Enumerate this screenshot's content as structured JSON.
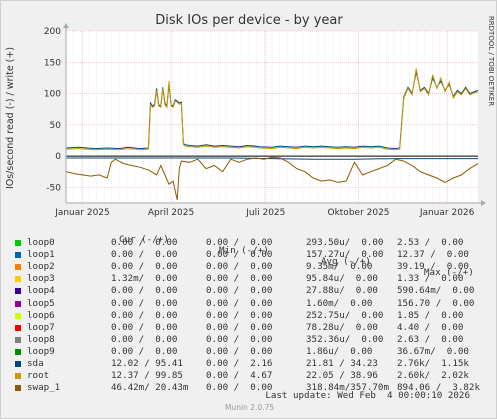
{
  "chart_data": {
    "type": "line",
    "title": "Disk IOs per device - by year",
    "ylabel": "IOs/second read (-) / write (+)",
    "ylim": [
      -75,
      200
    ],
    "yticks": [
      200,
      150,
      100,
      50,
      0,
      -50
    ],
    "xticks": [
      "Januar 2025",
      "April 2025",
      "Juli 2025",
      "Oktober 2025",
      "Januar 2026"
    ],
    "watermark": "RRDTOOL / TOBI OETIKER",
    "series": [
      {
        "name": "loop0",
        "color": "#00cc00"
      },
      {
        "name": "loop1",
        "color": "#0066b3"
      },
      {
        "name": "loop2",
        "color": "#ff8000"
      },
      {
        "name": "loop3",
        "color": "#ffcc00"
      },
      {
        "name": "loop4",
        "color": "#330099"
      },
      {
        "name": "loop5",
        "color": "#990099"
      },
      {
        "name": "loop6",
        "color": "#ccff00"
      },
      {
        "name": "loop7",
        "color": "#ff0000"
      },
      {
        "name": "loop8",
        "color": "#808080"
      },
      {
        "name": "loop9",
        "color": "#008f00"
      },
      {
        "name": "sda",
        "color": "#00487d",
        "write": [
          [
            0,
            13
          ],
          [
            0.03,
            14
          ],
          [
            0.07,
            12
          ],
          [
            0.1,
            13
          ],
          [
            0.13,
            12
          ],
          [
            0.15,
            14
          ],
          [
            0.18,
            12
          ],
          [
            0.2,
            13
          ],
          [
            0.205,
            85
          ],
          [
            0.21,
            80
          ],
          [
            0.215,
            83
          ],
          [
            0.22,
            108
          ],
          [
            0.225,
            82
          ],
          [
            0.23,
            80
          ],
          [
            0.235,
            110
          ],
          [
            0.24,
            85
          ],
          [
            0.245,
            80
          ],
          [
            0.25,
            115
          ],
          [
            0.255,
            82
          ],
          [
            0.26,
            80
          ],
          [
            0.265,
            90
          ],
          [
            0.27,
            88
          ],
          [
            0.275,
            85
          ],
          [
            0.28,
            86
          ],
          [
            0.285,
            20
          ],
          [
            0.29,
            18
          ],
          [
            0.3,
            17
          ],
          [
            0.32,
            16
          ],
          [
            0.34,
            18
          ],
          [
            0.36,
            16
          ],
          [
            0.38,
            17
          ],
          [
            0.4,
            16
          ],
          [
            0.42,
            15
          ],
          [
            0.44,
            17
          ],
          [
            0.46,
            16
          ],
          [
            0.47,
            15
          ],
          [
            0.5,
            14
          ],
          [
            0.52,
            16
          ],
          [
            0.54,
            15
          ],
          [
            0.56,
            14
          ],
          [
            0.58,
            16
          ],
          [
            0.6,
            15
          ],
          [
            0.62,
            16
          ],
          [
            0.64,
            15
          ],
          [
            0.66,
            14
          ],
          [
            0.68,
            15
          ],
          [
            0.7,
            14
          ],
          [
            0.72,
            16
          ],
          [
            0.74,
            15
          ],
          [
            0.76,
            16
          ],
          [
            0.78,
            13
          ],
          [
            0.8,
            12
          ],
          [
            0.81,
            13
          ],
          [
            0.82,
            95
          ],
          [
            0.83,
            110
          ],
          [
            0.84,
            100
          ],
          [
            0.85,
            135
          ],
          [
            0.86,
            105
          ],
          [
            0.87,
            110
          ],
          [
            0.88,
            100
          ],
          [
            0.89,
            125
          ],
          [
            0.9,
            110
          ],
          [
            0.91,
            120
          ],
          [
            0.92,
            105
          ],
          [
            0.93,
            115
          ],
          [
            0.94,
            95
          ],
          [
            0.95,
            105
          ],
          [
            0.96,
            100
          ],
          [
            0.97,
            110
          ],
          [
            0.98,
            100
          ],
          [
            1,
            105
          ]
        ],
        "read": [
          [
            0,
            -3
          ],
          [
            0.1,
            -3
          ],
          [
            0.2,
            -3
          ],
          [
            0.3,
            -3
          ],
          [
            0.4,
            -3
          ],
          [
            0.5,
            -4
          ],
          [
            0.6,
            -5
          ],
          [
            0.7,
            -5
          ],
          [
            0.8,
            -4
          ],
          [
            0.9,
            -4
          ],
          [
            1,
            -4
          ]
        ]
      },
      {
        "name": "root",
        "color": "#cc9900",
        "write": [
          [
            0,
            11
          ],
          [
            0.03,
            12
          ],
          [
            0.07,
            10
          ],
          [
            0.1,
            11
          ],
          [
            0.13,
            10
          ],
          [
            0.15,
            12
          ],
          [
            0.18,
            10
          ],
          [
            0.2,
            11
          ],
          [
            0.205,
            82
          ],
          [
            0.21,
            78
          ],
          [
            0.215,
            80
          ],
          [
            0.22,
            105
          ],
          [
            0.225,
            80
          ],
          [
            0.23,
            78
          ],
          [
            0.235,
            108
          ],
          [
            0.24,
            82
          ],
          [
            0.245,
            78
          ],
          [
            0.25,
            120
          ],
          [
            0.255,
            80
          ],
          [
            0.26,
            78
          ],
          [
            0.265,
            88
          ],
          [
            0.27,
            86
          ],
          [
            0.275,
            83
          ],
          [
            0.28,
            84
          ],
          [
            0.285,
            18
          ],
          [
            0.29,
            16
          ],
          [
            0.3,
            15
          ],
          [
            0.32,
            14
          ],
          [
            0.34,
            16
          ],
          [
            0.36,
            14
          ],
          [
            0.38,
            15
          ],
          [
            0.4,
            14
          ],
          [
            0.42,
            13
          ],
          [
            0.44,
            15
          ],
          [
            0.46,
            14
          ],
          [
            0.47,
            13
          ],
          [
            0.5,
            12
          ],
          [
            0.52,
            14
          ],
          [
            0.54,
            13
          ],
          [
            0.56,
            12
          ],
          [
            0.58,
            14
          ],
          [
            0.6,
            13
          ],
          [
            0.62,
            14
          ],
          [
            0.64,
            13
          ],
          [
            0.66,
            12
          ],
          [
            0.68,
            13
          ],
          [
            0.7,
            12
          ],
          [
            0.72,
            14
          ],
          [
            0.74,
            13
          ],
          [
            0.76,
            14
          ],
          [
            0.78,
            11
          ],
          [
            0.8,
            10
          ],
          [
            0.81,
            11
          ],
          [
            0.82,
            93
          ],
          [
            0.83,
            108
          ],
          [
            0.84,
            98
          ],
          [
            0.85,
            140
          ],
          [
            0.86,
            103
          ],
          [
            0.87,
            108
          ],
          [
            0.88,
            98
          ],
          [
            0.89,
            130
          ],
          [
            0.9,
            108
          ],
          [
            0.91,
            125
          ],
          [
            0.92,
            103
          ],
          [
            0.93,
            118
          ],
          [
            0.94,
            93
          ],
          [
            0.95,
            103
          ],
          [
            0.96,
            98
          ],
          [
            0.97,
            108
          ],
          [
            0.98,
            98
          ],
          [
            1,
            103
          ]
        ]
      },
      {
        "name": "swap_1",
        "color": "#8f5a00",
        "read": [
          [
            0,
            -25
          ],
          [
            0.02,
            -28
          ],
          [
            0.04,
            -30
          ],
          [
            0.06,
            -32
          ],
          [
            0.08,
            -30
          ],
          [
            0.1,
            -35
          ],
          [
            0.11,
            -10
          ],
          [
            0.12,
            -5
          ],
          [
            0.14,
            -12
          ],
          [
            0.16,
            -15
          ],
          [
            0.18,
            -18
          ],
          [
            0.2,
            -22
          ],
          [
            0.22,
            -30
          ],
          [
            0.23,
            -15
          ],
          [
            0.25,
            -45
          ],
          [
            0.26,
            -40
          ],
          [
            0.27,
            -70
          ],
          [
            0.275,
            -20
          ],
          [
            0.28,
            -8
          ],
          [
            0.3,
            -10
          ],
          [
            0.32,
            -5
          ],
          [
            0.34,
            -20
          ],
          [
            0.36,
            -15
          ],
          [
            0.38,
            -25
          ],
          [
            0.4,
            -5
          ],
          [
            0.42,
            -10
          ],
          [
            0.44,
            -5
          ],
          [
            0.46,
            -3
          ],
          [
            0.48,
            -5
          ],
          [
            0.5,
            -2
          ],
          [
            0.52,
            -3
          ],
          [
            0.54,
            -10
          ],
          [
            0.56,
            -20
          ],
          [
            0.58,
            -25
          ],
          [
            0.6,
            -35
          ],
          [
            0.62,
            -40
          ],
          [
            0.64,
            -38
          ],
          [
            0.66,
            -42
          ],
          [
            0.68,
            -40
          ],
          [
            0.7,
            -10
          ],
          [
            0.72,
            -30
          ],
          [
            0.74,
            -25
          ],
          [
            0.76,
            -20
          ],
          [
            0.78,
            -15
          ],
          [
            0.8,
            -5
          ],
          [
            0.82,
            -8
          ],
          [
            0.84,
            -15
          ],
          [
            0.86,
            -25
          ],
          [
            0.88,
            -30
          ],
          [
            0.9,
            -35
          ],
          [
            0.92,
            -42
          ],
          [
            0.94,
            -35
          ],
          [
            0.96,
            -30
          ],
          [
            0.97,
            -25
          ],
          [
            0.98,
            -20
          ],
          [
            1,
            -12
          ]
        ]
      }
    ]
  },
  "legend": {
    "header": {
      "cur": "Cur (-/+)",
      "min": "Min (-/+)",
      "avg": "Avg (-/+)",
      "max": "Max (-/+)"
    },
    "rows": [
      {
        "name": "loop0",
        "color": "#00cc00",
        "cur": "0.00 /  0.00",
        "min": "0.00 /  0.00",
        "avg": "293.50u/  0.00",
        "max": "2.53 /  0.00"
      },
      {
        "name": "loop1",
        "color": "#0066b3",
        "cur": "0.00 /  0.00",
        "min": "0.00 /  0.00",
        "avg": "157.27u/  0.00",
        "max": "12.37 /  0.00"
      },
      {
        "name": "loop2",
        "color": "#ff8000",
        "cur": "0.00 /  0.00",
        "min": "0.00 /  0.00",
        "avg": "9.35m/  0.00",
        "max": "39.19 /  0.00"
      },
      {
        "name": "loop3",
        "color": "#ffcc00",
        "cur": "1.32m/  0.00",
        "min": "0.00 /  0.00",
        "avg": "95.84u/  0.00",
        "max": "1.33 /  0.00"
      },
      {
        "name": "loop4",
        "color": "#330099",
        "cur": "0.00 /  0.00",
        "min": "0.00 /  0.00",
        "avg": "27.88u/  0.00",
        "max": "590.64m/  0.00"
      },
      {
        "name": "loop5",
        "color": "#990099",
        "cur": "0.00 /  0.00",
        "min": "0.00 /  0.00",
        "avg": "1.60m/  0.00",
        "max": "156.70 /  0.00"
      },
      {
        "name": "loop6",
        "color": "#ccff00",
        "cur": "0.00 /  0.00",
        "min": "0.00 /  0.00",
        "avg": "252.75u/  0.00",
        "max": "1.85 /  0.00"
      },
      {
        "name": "loop7",
        "color": "#ff0000",
        "cur": "0.00 /  0.00",
        "min": "0.00 /  0.00",
        "avg": "78.28u/  0.00",
        "max": "4.40 /  0.00"
      },
      {
        "name": "loop8",
        "color": "#808080",
        "cur": "0.00 /  0.00",
        "min": "0.00 /  0.00",
        "avg": "352.36u/  0.00",
        "max": "2.63 /  0.00"
      },
      {
        "name": "loop9",
        "color": "#008f00",
        "cur": "0.00 /  0.00",
        "min": "0.00 /  0.00",
        "avg": "1.86u/  0.00",
        "max": "36.67m/  0.00"
      },
      {
        "name": "sda",
        "color": "#00487d",
        "cur": "12.02 / 95.41",
        "min": "0.00 /  2.16",
        "avg": "21.81 / 34.23",
        "max": "2.76k/  1.15k"
      },
      {
        "name": "root",
        "color": "#cc9900",
        "cur": "12.37 / 99.85",
        "min": "0.00 /  4.67",
        "avg": "22.05 / 38.96",
        "max": "2.60k/  2.02k"
      },
      {
        "name": "swap_1",
        "color": "#8f5a00",
        "cur": "46.42m/ 20.43m",
        "min": "0.00 /  0.00",
        "avg": "318.84m/357.70m",
        "max": "894.06 /  3.82k"
      }
    ]
  },
  "footer": {
    "last_update": "Last update: Wed Feb  4 00:00:10 2026",
    "version": "Munin 2.0.75"
  }
}
